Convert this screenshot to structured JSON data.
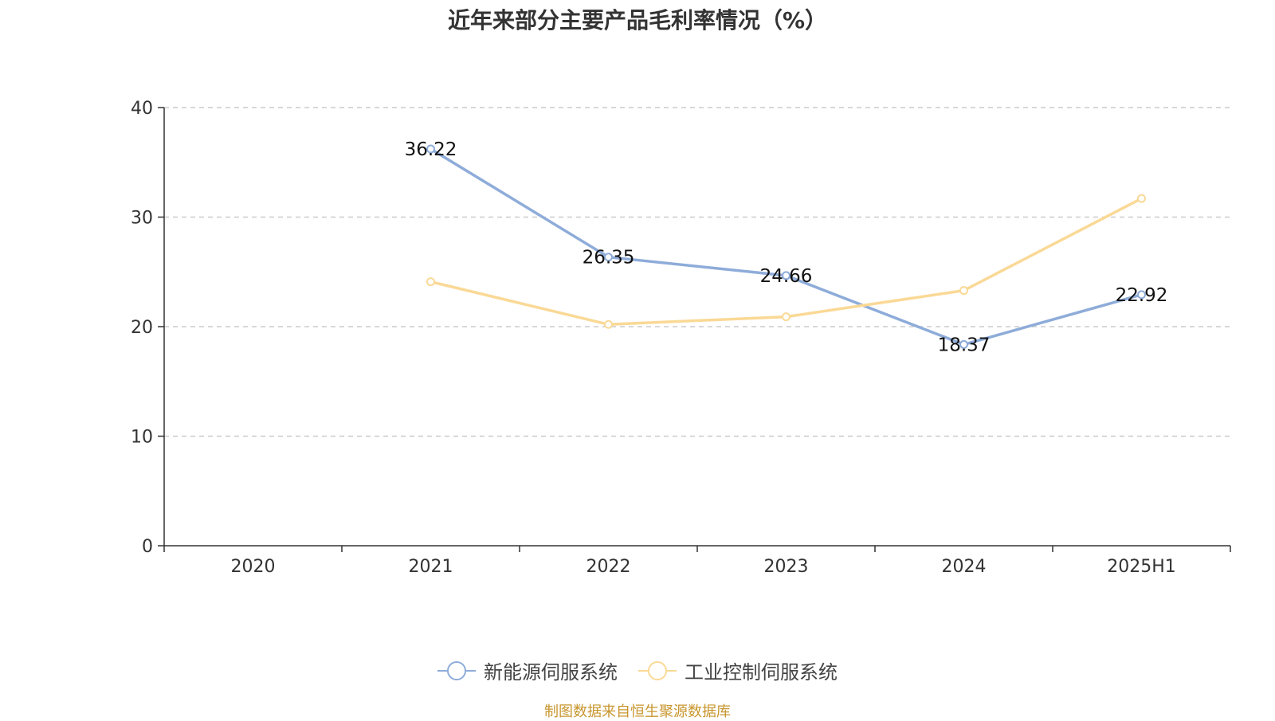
{
  "chart_data": {
    "type": "line",
    "title": "近年来部分主要产品毛利率情况（%）",
    "categories": [
      "2020",
      "2021",
      "2022",
      "2023",
      "2024",
      "2025H1"
    ],
    "ylim": [
      0,
      40
    ],
    "yticks": [
      0,
      10,
      20,
      30,
      40
    ],
    "grid": true,
    "legend_position": "bottom-center",
    "series": [
      {
        "name": "新能源伺服系统",
        "color": "#8eacd9",
        "values": [
          null,
          36.22,
          26.35,
          24.66,
          18.37,
          22.92
        ],
        "labels": [
          "",
          "36.22",
          "26.35",
          "24.66",
          "18.37",
          "22.92"
        ]
      },
      {
        "name": "工业控制伺服系统",
        "color": "#fad996",
        "values": [
          null,
          24.1,
          20.2,
          20.9,
          23.3,
          31.7
        ],
        "labels": [
          "",
          "",
          "",
          "",
          "",
          ""
        ]
      }
    ]
  },
  "source_note": "制图数据来自恒生聚源数据库"
}
